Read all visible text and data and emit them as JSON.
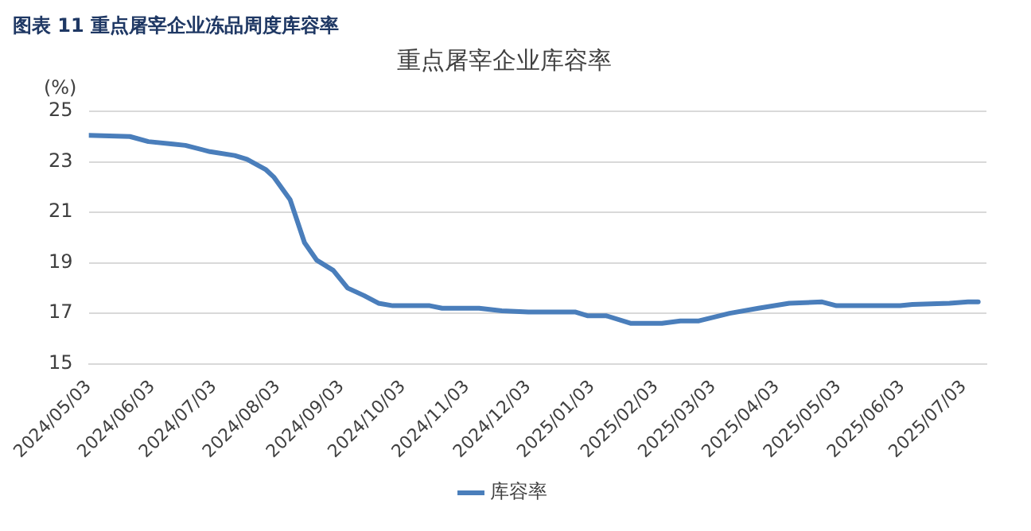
{
  "chart_data": {
    "type": "line",
    "title": "图表 11 重点屠宰企业冻品周度库容率",
    "subtitle": "重点屠宰企业库容率",
    "ylabel": "(%)",
    "x": [
      "2024-05-03",
      "2024-05-23",
      "2024-06-01",
      "2024-06-13",
      "2024-06-19",
      "2024-07-01",
      "2024-07-13",
      "2024-07-19",
      "2024-07-28",
      "2024-08-01",
      "2024-08-09",
      "2024-08-16",
      "2024-08-22",
      "2024-08-30",
      "2024-09-06",
      "2024-09-14",
      "2024-09-21",
      "2024-09-28",
      "2024-10-16",
      "2024-10-22",
      "2024-11-09",
      "2024-11-20",
      "2024-12-03",
      "2024-12-26",
      "2025-01-01",
      "2025-01-10",
      "2025-01-22",
      "2025-02-06",
      "2025-02-15",
      "2025-02-24",
      "2025-03-11",
      "2025-03-25",
      "2025-04-09",
      "2025-04-25",
      "2025-05-02",
      "2025-06-02",
      "2025-06-08",
      "2025-06-26",
      "2025-07-05",
      "2025-07-10"
    ],
    "series": [
      {
        "name": "库容率",
        "color": "#4a7ebb",
        "values": [
          24.05,
          24.0,
          23.8,
          23.7,
          23.65,
          23.4,
          23.25,
          23.1,
          22.7,
          22.4,
          21.5,
          19.8,
          19.1,
          18.7,
          18.0,
          17.7,
          17.4,
          17.3,
          17.3,
          17.2,
          17.2,
          17.1,
          17.05,
          17.05,
          16.9,
          16.9,
          16.6,
          16.6,
          16.7,
          16.7,
          17.0,
          17.2,
          17.4,
          17.45,
          17.3,
          17.3,
          17.35,
          17.4,
          17.45,
          17.45
        ]
      }
    ],
    "xlim": [
      "2024-05-03",
      "2025-07-14"
    ],
    "xticks": [
      {
        "value": "2024-05-03",
        "label": "2024/05/03"
      },
      {
        "value": "2024-06-03",
        "label": "2024/06/03"
      },
      {
        "value": "2024-07-03",
        "label": "2024/07/03"
      },
      {
        "value": "2024-08-03",
        "label": "2024/08/03"
      },
      {
        "value": "2024-09-03",
        "label": "2024/09/03"
      },
      {
        "value": "2024-10-03",
        "label": "2024/10/03"
      },
      {
        "value": "2024-11-03",
        "label": "2024/11/03"
      },
      {
        "value": "2024-12-03",
        "label": "2024/12/03"
      },
      {
        "value": "2025-01-03",
        "label": "2025/01/03"
      },
      {
        "value": "2025-02-03",
        "label": "2025/02/03"
      },
      {
        "value": "2025-03-03",
        "label": "2025/03/03"
      },
      {
        "value": "2025-04-03",
        "label": "2025/04/03"
      },
      {
        "value": "2025-05-03",
        "label": "2025/05/03"
      },
      {
        "value": "2025-06-03",
        "label": "2025/06/03"
      },
      {
        "value": "2025-07-03",
        "label": "2025/07/03"
      }
    ],
    "ylim": [
      15,
      25
    ],
    "yticks": [
      15,
      17,
      19,
      21,
      23,
      25
    ],
    "grid": "y",
    "legend": "bottom",
    "marker": "none",
    "line_style": "solid"
  }
}
